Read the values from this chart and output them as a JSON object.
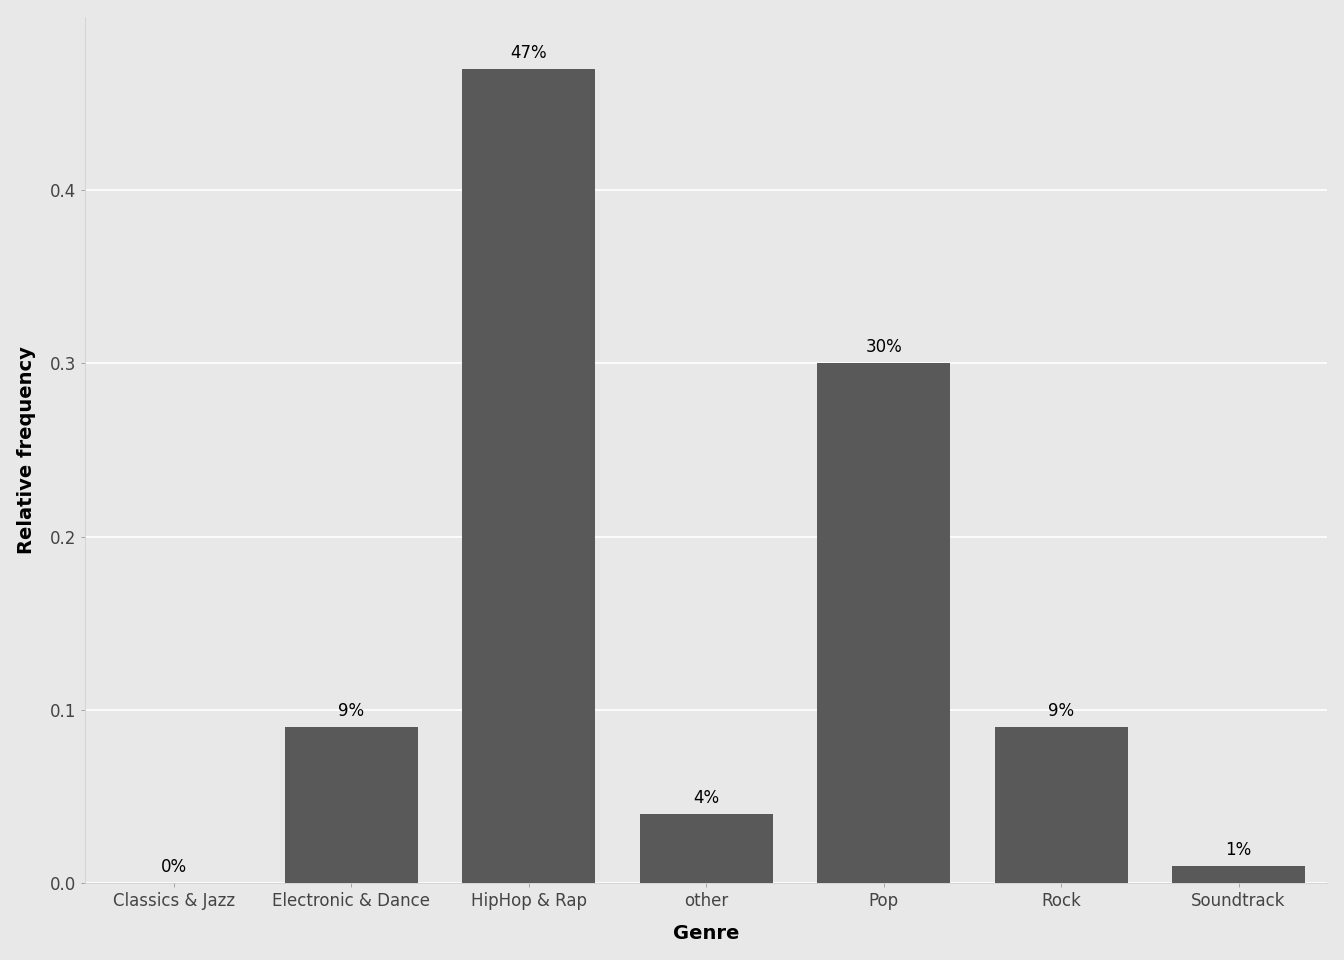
{
  "categories": [
    "Classics & Jazz",
    "Electronic & Dance",
    "HipHop & Rap",
    "other",
    "Pop",
    "Rock",
    "Soundtrack"
  ],
  "values": [
    0.0,
    0.09,
    0.47,
    0.04,
    0.3,
    0.09,
    0.01
  ],
  "labels": [
    "0%",
    "9%",
    "47%",
    "4%",
    "30%",
    "9%",
    "1%"
  ],
  "bar_color": "#595959",
  "background_color": "#e8e8e8",
  "panel_background": "#e8e8e8",
  "grid_color": "#ffffff",
  "xlabel": "Genre",
  "ylabel": "Relative frequency",
  "ylim": [
    0,
    0.5
  ],
  "yticks": [
    0.0,
    0.1,
    0.2,
    0.3,
    0.4
  ],
  "axis_label_fontsize": 14,
  "tick_fontsize": 12,
  "annotation_fontsize": 12
}
